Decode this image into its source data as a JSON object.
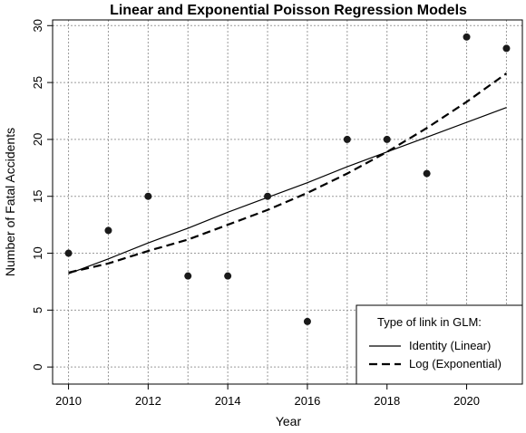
{
  "chart_data": {
    "type": "scatter",
    "title": "Linear and Exponential Poisson Regression Models",
    "xlabel": "Year",
    "ylabel": "Number of Fatal Accidents",
    "xlim": [
      2009.6,
      2021.4
    ],
    "ylim": [
      -1.5,
      30.5
    ],
    "x_ticks": [
      2010,
      2012,
      2014,
      2016,
      2018,
      2020
    ],
    "y_ticks": [
      0,
      5,
      10,
      15,
      20,
      25,
      30
    ],
    "grid": true,
    "grid_x": [
      2010,
      2011,
      2012,
      2013,
      2014,
      2015,
      2016,
      2017,
      2018,
      2019,
      2020,
      2021
    ],
    "grid_y": [
      0,
      5,
      10,
      15,
      20,
      25,
      30
    ],
    "points": {
      "x": [
        2010,
        2011,
        2012,
        2013,
        2014,
        2015,
        2016,
        2017,
        2018,
        2019,
        2020,
        2021
      ],
      "y": [
        10,
        12,
        15,
        8,
        8,
        15,
        4,
        20,
        20,
        17,
        29,
        28
      ],
      "color": "#1a1a1a"
    },
    "series": [
      {
        "name": "Identity (Linear)",
        "style": "solid",
        "x": [
          2010,
          2011,
          2012,
          2013,
          2014,
          2015,
          2016,
          2017,
          2018,
          2019,
          2020,
          2021
        ],
        "y": [
          8.2,
          9.5,
          10.9,
          12.2,
          13.6,
          14.9,
          16.2,
          17.6,
          18.9,
          20.2,
          21.5,
          22.8
        ]
      },
      {
        "name": "Log (Exponential)",
        "style": "dashed",
        "x": [
          2010,
          2011,
          2012,
          2013,
          2014,
          2015,
          2016,
          2017,
          2018,
          2019,
          2020,
          2021
        ],
        "y": [
          8.3,
          9.1,
          10.2,
          11.2,
          12.5,
          13.8,
          15.3,
          17.0,
          18.9,
          21.0,
          23.3,
          25.8
        ]
      }
    ],
    "legend": {
      "title": "Type of link in GLM:",
      "position": "bottom-right"
    }
  }
}
